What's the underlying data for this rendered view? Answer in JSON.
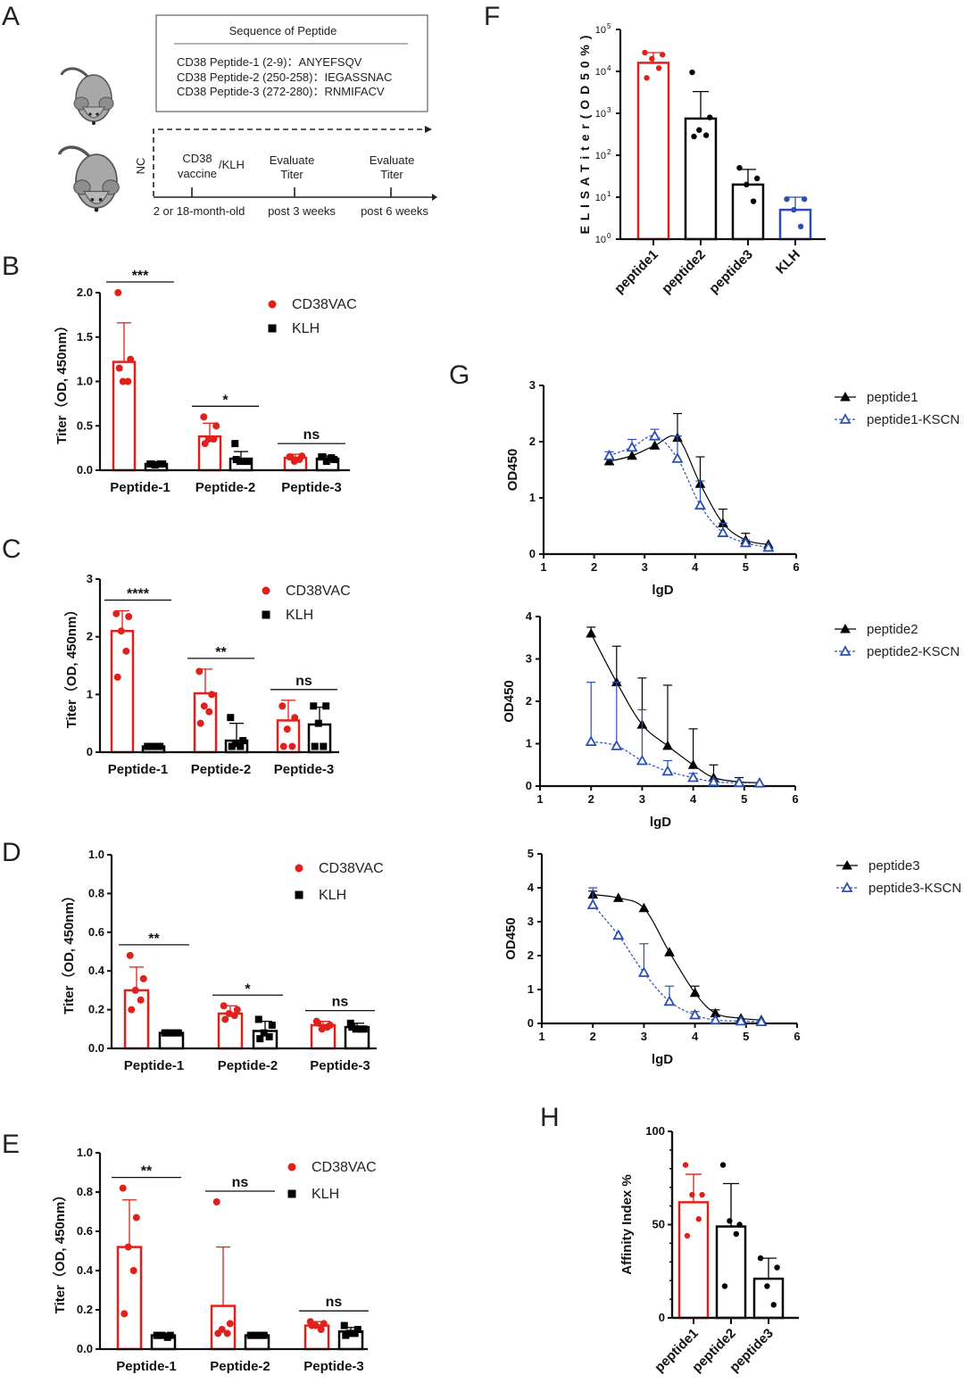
{
  "panel_labels": [
    "A",
    "B",
    "C",
    "D",
    "E",
    "F",
    "G",
    "H"
  ],
  "panel_a": {
    "box_title": "Sequence of Peptide",
    "peptides": [
      "CD38 Peptide-1 (2-9)：ANYEFSQV",
      "CD38 Peptide-2 (250-258)：IEGASSNAC",
      "CD38 Peptide-3 (272-280)：RNMIFACV"
    ],
    "nc": "NC",
    "vaccine_line1": "CD38",
    "vaccine_line2": "vaccine",
    "vaccine_klh": "/KLH",
    "evaluate_line1": "Evaluate",
    "evaluate_line2": "Titer",
    "timeline": [
      "2 or 18-month-old",
      "post 3 weeks",
      "post 6 weeks"
    ],
    "icons": [
      "mouse-icon",
      "mouse-icon"
    ]
  },
  "colors": {
    "cd38vac": "#e0201b",
    "klh": "#000000",
    "blue": "#2b4fb5"
  },
  "chart_data": [
    {
      "panel": "B",
      "type": "bar",
      "ylabel": "Titer（OD, 450nm）",
      "ylim": [
        0,
        2
      ],
      "yticks": [
        "0.0",
        "0.5",
        "1.0",
        "1.5",
        "2.0"
      ],
      "categories": [
        "Peptide-1",
        "Peptide-2",
        "Peptide-3"
      ],
      "significance": [
        "***",
        "*",
        "ns"
      ],
      "series": [
        {
          "name": "CD38VAC",
          "color": "#e0201b",
          "marker": "circle",
          "means": [
            1.22,
            0.38,
            0.14
          ],
          "sd": [
            0.44,
            0.15,
            0.04
          ],
          "points": [
            [
              2.0,
              1.25,
              1.0,
              1.0,
              1.15
            ],
            [
              0.6,
              0.5,
              0.35,
              0.35,
              0.3
            ],
            [
              0.15,
              0.16,
              0.1,
              0.12,
              0.15
            ]
          ]
        },
        {
          "name": "KLH",
          "color": "#000000",
          "marker": "square",
          "means": [
            0.07,
            0.13,
            0.13
          ],
          "sd": [
            0.01,
            0.08,
            0.03
          ],
          "points": [
            [
              0.07,
              0.07,
              0.06,
              0.07,
              0.07
            ],
            [
              0.3,
              0.1,
              0.1,
              0.1,
              0.12
            ],
            [
              0.15,
              0.12,
              0.1,
              0.14,
              0.15
            ]
          ]
        }
      ]
    },
    {
      "panel": "C",
      "type": "bar",
      "ylabel": "Titer（OD, 450nm）",
      "ylim": [
        0,
        3
      ],
      "yticks": [
        "0",
        "1",
        "2",
        "3"
      ],
      "categories": [
        "Peptide-1",
        "Peptide-2",
        "Peptide-3"
      ],
      "significance": [
        "****",
        "**",
        "ns"
      ],
      "series": [
        {
          "name": "CD38VAC",
          "color": "#e0201b",
          "marker": "circle",
          "means": [
            2.1,
            1.02,
            0.55
          ],
          "sd": [
            0.35,
            0.42,
            0.35
          ],
          "points": [
            [
              2.4,
              2.35,
              2.1,
              1.75,
              1.3
            ],
            [
              1.4,
              1.0,
              0.8,
              0.7,
              0.5
            ],
            [
              0.8,
              0.6,
              0.4,
              0.1,
              0.1
            ]
          ]
        },
        {
          "name": "KLH",
          "color": "#000000",
          "marker": "square",
          "means": [
            0.1,
            0.2,
            0.48
          ],
          "sd": [
            0.02,
            0.3,
            0.3
          ],
          "points": [
            [
              0.1,
              0.1,
              0.1,
              0.1,
              0.1
            ],
            [
              0.6,
              0.2,
              0.15,
              0.1,
              0.1
            ],
            [
              0.8,
              0.8,
              0.5,
              0.1,
              0.1
            ]
          ]
        }
      ]
    },
    {
      "panel": "D",
      "type": "bar",
      "ylabel": "Titer（OD, 450nm）",
      "ylim": [
        0,
        1
      ],
      "yticks": [
        "0.0",
        "0.2",
        "0.4",
        "0.6",
        "0.8",
        "1.0"
      ],
      "categories": [
        "Peptide-1",
        "Peptide-2",
        "Peptide-3"
      ],
      "significance": [
        "**",
        "*",
        "ns"
      ],
      "series": [
        {
          "name": "CD38VAC",
          "color": "#e0201b",
          "marker": "circle",
          "means": [
            0.3,
            0.18,
            0.12
          ],
          "sd": [
            0.12,
            0.04,
            0.02
          ],
          "points": [
            [
              0.48,
              0.36,
              0.3,
              0.25,
              0.2
            ],
            [
              0.22,
              0.2,
              0.18,
              0.17,
              0.15
            ],
            [
              0.14,
              0.12,
              0.1,
              0.11,
              0.13
            ]
          ]
        },
        {
          "name": "KLH",
          "color": "#000000",
          "marker": "square",
          "means": [
            0.08,
            0.09,
            0.11
          ],
          "sd": [
            0.005,
            0.05,
            0.02
          ],
          "points": [
            [
              0.08,
              0.08,
              0.08,
              0.08,
              0.08
            ],
            [
              0.15,
              0.12,
              0.08,
              0.06,
              0.05
            ],
            [
              0.13,
              0.1,
              0.1,
              0.1,
              0.11
            ]
          ]
        }
      ]
    },
    {
      "panel": "E",
      "type": "bar",
      "ylabel": "Titer（OD, 450nm）",
      "ylim": [
        0,
        1
      ],
      "yticks": [
        "0.0",
        "0.2",
        "0.4",
        "0.6",
        "0.8",
        "1.0"
      ],
      "categories": [
        "Peptide-1",
        "Peptide-2",
        "Peptide-3"
      ],
      "significance": [
        "**",
        "ns",
        "ns"
      ],
      "series": [
        {
          "name": "CD38VAC",
          "color": "#e0201b",
          "marker": "circle",
          "means": [
            0.52,
            0.22,
            0.12
          ],
          "sd": [
            0.24,
            0.3,
            0.02
          ],
          "points": [
            [
              0.82,
              0.67,
              0.52,
              0.4,
              0.18
            ],
            [
              0.75,
              0.13,
              0.1,
              0.08,
              0.08
            ],
            [
              0.14,
              0.13,
              0.12,
              0.1,
              0.12
            ]
          ]
        },
        {
          "name": "KLH",
          "color": "#000000",
          "marker": "square",
          "means": [
            0.07,
            0.07,
            0.09
          ],
          "sd": [
            0.01,
            0.005,
            0.02
          ],
          "points": [
            [
              0.07,
              0.07,
              0.07,
              0.06,
              0.07
            ],
            [
              0.07,
              0.07,
              0.07,
              0.07,
              0.07
            ],
            [
              0.12,
              0.1,
              0.08,
              0.08,
              0.07
            ]
          ]
        }
      ]
    },
    {
      "panel": "F",
      "type": "bar",
      "yscale": "log",
      "ylabel": "E L I S A T i t e r ( O D 5 0 % )",
      "ylim": [
        1,
        100000
      ],
      "ytick_exponents": [
        0,
        1,
        2,
        3,
        4,
        5
      ],
      "categories": [
        "peptide1",
        "peptide2",
        "peptide3",
        "KLH"
      ],
      "values": [
        16000,
        750,
        20,
        5
      ],
      "error_upper": [
        28000,
        3300,
        46,
        10
      ],
      "points": [
        [
          28000,
          25000,
          20000,
          12000,
          7000
        ],
        [
          9500,
          800,
          400,
          300,
          280
        ],
        [
          50,
          28,
          20,
          8
        ],
        [
          9,
          9,
          5,
          2
        ]
      ],
      "colors": [
        "#e0201b",
        "#000000",
        "#000000",
        "#2b4fb5"
      ]
    },
    {
      "panel": "G",
      "type": "line",
      "ylabel": "OD450",
      "xlabel": "lgD",
      "xlim": [
        1,
        6
      ],
      "ylim": [
        0,
        3
      ],
      "xticks": [
        "1",
        "2",
        "3",
        "4",
        "5",
        "6"
      ],
      "yticks": [
        "0",
        "1",
        "2",
        "3"
      ],
      "x": [
        2.3,
        2.75,
        3.2,
        3.65,
        4.1,
        4.55,
        5.0,
        5.45
      ],
      "series": [
        {
          "name": "peptide1",
          "color": "#000000",
          "style": "solid-filled-triangle",
          "y": [
            1.65,
            1.75,
            1.93,
            2.07,
            1.25,
            0.55,
            0.25,
            0.17
          ],
          "error_upper": [
            1.65,
            1.75,
            1.93,
            2.5,
            1.73,
            0.8,
            0.37,
            0.17
          ]
        },
        {
          "name": "peptide1-KSCN",
          "color": "#2b4fb5",
          "style": "dashed-open-triangle",
          "y": [
            1.75,
            1.9,
            2.1,
            1.7,
            0.87,
            0.38,
            0.2,
            0.12
          ],
          "error_upper": [
            1.82,
            2.04,
            2.22,
            2.1,
            1.3,
            0.55,
            0.25,
            0.12
          ]
        }
      ]
    },
    {
      "panel": "G",
      "type": "line",
      "ylabel": "OD450",
      "xlabel": "lgD",
      "xlim": [
        1,
        6
      ],
      "ylim": [
        0,
        4
      ],
      "xticks": [
        "1",
        "2",
        "3",
        "4",
        "5",
        "6"
      ],
      "yticks": [
        "0",
        "1",
        "2",
        "3",
        "4"
      ],
      "x": [
        2.0,
        2.5,
        3.0,
        3.5,
        4.0,
        4.4,
        4.9,
        5.3
      ],
      "series": [
        {
          "name": "peptide2",
          "color": "#000000",
          "style": "solid-filled-triangle",
          "y": [
            3.6,
            2.45,
            1.45,
            0.95,
            0.5,
            0.2,
            0.1,
            0.08
          ],
          "error_upper": [
            3.75,
            3.3,
            2.55,
            2.38,
            1.35,
            0.5,
            0.2,
            0.12
          ]
        },
        {
          "name": "peptide2-KSCN",
          "color": "#2b4fb5",
          "style": "dashed-open-triangle",
          "y": [
            1.05,
            0.95,
            0.6,
            0.35,
            0.2,
            0.1,
            0.08,
            0.07
          ],
          "error_upper": [
            2.45,
            2.45,
            1.8,
            0.6,
            0.3,
            0.15,
            0.1,
            0.07
          ]
        }
      ]
    },
    {
      "panel": "G",
      "type": "line",
      "ylabel": "OD450",
      "xlabel": "lgD",
      "xlim": [
        1,
        6
      ],
      "ylim": [
        0,
        5
      ],
      "xticks": [
        "1",
        "2",
        "3",
        "4",
        "5",
        "6"
      ],
      "yticks": [
        "0",
        "1",
        "2",
        "3",
        "4",
        "5"
      ],
      "x": [
        2.0,
        2.5,
        3.0,
        3.5,
        4.0,
        4.4,
        4.9,
        5.3
      ],
      "series": [
        {
          "name": "peptide3",
          "color": "#000000",
          "style": "solid-filled-triangle",
          "y": [
            3.8,
            3.7,
            3.4,
            2.1,
            0.9,
            0.3,
            0.15,
            0.1
          ],
          "error_upper": [
            3.9,
            3.7,
            3.45,
            2.15,
            1.1,
            0.4,
            0.18,
            0.1
          ]
        },
        {
          "name": "peptide3-KSCN",
          "color": "#2b4fb5",
          "style": "dashed-open-triangle",
          "y": [
            3.5,
            2.6,
            1.5,
            0.65,
            0.25,
            0.1,
            0.07,
            0.05
          ],
          "error_upper": [
            4.0,
            2.6,
            2.35,
            1.1,
            0.35,
            0.15,
            0.08,
            0.05
          ]
        }
      ]
    },
    {
      "panel": "H",
      "type": "bar",
      "ylabel": "Affinity Index  %",
      "ylim": [
        0,
        100
      ],
      "yticks": [
        "0",
        "50",
        "100"
      ],
      "categories": [
        "peptide1",
        "peptide2",
        "peptide3"
      ],
      "values": [
        62,
        49,
        21
      ],
      "error_upper": [
        77,
        72,
        32
      ],
      "points": [
        [
          82,
          66,
          66,
          53,
          44
        ],
        [
          82,
          50,
          52,
          45,
          17
        ],
        [
          32,
          27,
          17,
          7
        ]
      ],
      "colors": [
        "#e0201b",
        "#000000",
        "#000000"
      ]
    }
  ]
}
